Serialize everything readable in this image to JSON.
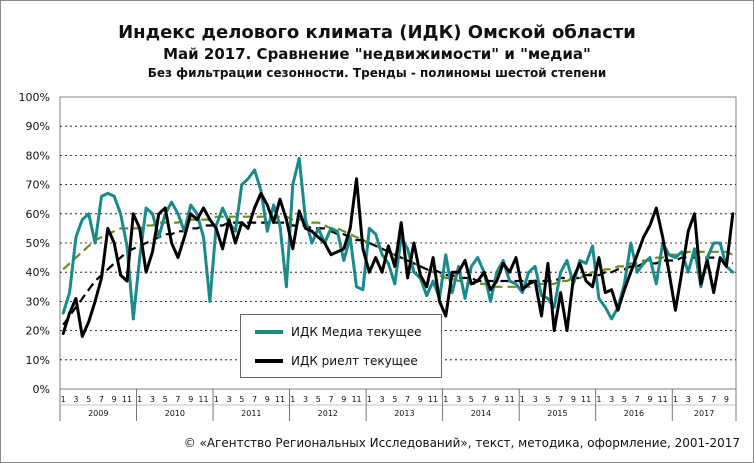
{
  "footer": "© «Агентство Региональных Исследований», текст, методика, оформление, 2001-2017",
  "chart_data": {
    "type": "line",
    "title": "Индекс делового климата (ИДК) Омской области",
    "subtitle": "Май 2017. Сравнение \"недвижимости\"  и \"медиа\"",
    "subtitle2": "Без фильтрации  сезонности. Тренды  - полиномы  шестой степени",
    "ylim": [
      0,
      100
    ],
    "y_ticks": [
      "0%",
      "10%",
      "20%",
      "30%",
      "40%",
      "50%",
      "60%",
      "70%",
      "80%",
      "90%",
      "100%"
    ],
    "x_month_ticks": [
      "1",
      "3",
      "5",
      "7",
      "9",
      "11"
    ],
    "years": [
      "2009",
      "2010",
      "2011",
      "2012",
      "2013",
      "2014",
      "2015",
      "2016",
      "2017"
    ],
    "x_start": "2009-01",
    "legend_position": "center-left",
    "grid": true,
    "series": [
      {
        "name": "ИДК Медиа текущее",
        "color": "#1a8a8a",
        "values": [
          26,
          33,
          52,
          58,
          60,
          50,
          66,
          67,
          66,
          60,
          49,
          24,
          45,
          62,
          60,
          52,
          60,
          64,
          60,
          54,
          63,
          60,
          52,
          30,
          56,
          62,
          57,
          54,
          70,
          72,
          75,
          68,
          54,
          63,
          56,
          35,
          70,
          79,
          58,
          50,
          55,
          50,
          55,
          54,
          44,
          52,
          35,
          34,
          55,
          53,
          46,
          43,
          36,
          52,
          48,
          40,
          38,
          32,
          37,
          31,
          46,
          33,
          42,
          31,
          42,
          45,
          40,
          30,
          40,
          44,
          37,
          36,
          33,
          40,
          42,
          32,
          31,
          28,
          40,
          44,
          36,
          44,
          43,
          49,
          31,
          28,
          24,
          28,
          36,
          50,
          40,
          43,
          45,
          36,
          50,
          46,
          45,
          47,
          40,
          48,
          35,
          45,
          50,
          50,
          42,
          40
        ],
        "trend": [
          41,
          43,
          45,
          47,
          49,
          51,
          52,
          53,
          54,
          55,
          55,
          55,
          55,
          56,
          56,
          57,
          57,
          57,
          57,
          58,
          58,
          58,
          58,
          58,
          59,
          59,
          59,
          59,
          59,
          59,
          59,
          59,
          59,
          59,
          59,
          59,
          58,
          58,
          58,
          57,
          57,
          56,
          55,
          55,
          54,
          53,
          52,
          51,
          50,
          49,
          48,
          47,
          46,
          45,
          44,
          43,
          42,
          41,
          40,
          39,
          38,
          38,
          37,
          37,
          36,
          36,
          36,
          35,
          35,
          35,
          35,
          35,
          35,
          35,
          35,
          36,
          36,
          36,
          37,
          37,
          38,
          38,
          39,
          40,
          40,
          41,
          41,
          42,
          42,
          43,
          43,
          44,
          44,
          45,
          45,
          46,
          46,
          46,
          47,
          47,
          47,
          47,
          47,
          47,
          47,
          46
        ]
      },
      {
        "name": "ИДК риелт текущее",
        "color": "#000000",
        "values": [
          19,
          26,
          31,
          18,
          23,
          30,
          38,
          55,
          50,
          39,
          37,
          60,
          55,
          40,
          47,
          60,
          62,
          50,
          45,
          52,
          60,
          58,
          62,
          58,
          55,
          48,
          58,
          50,
          57,
          55,
          62,
          67,
          63,
          57,
          65,
          58,
          48,
          61,
          55,
          54,
          52,
          50,
          46,
          47,
          48,
          55,
          72,
          48,
          40,
          45,
          40,
          49,
          42,
          57,
          38,
          50,
          39,
          35,
          45,
          30,
          25,
          40,
          40,
          44,
          36,
          37,
          40,
          34,
          37,
          43,
          40,
          45,
          34,
          36,
          37,
          25,
          43,
          20,
          33,
          20,
          38,
          43,
          37,
          35,
          45,
          33,
          34,
          27,
          34,
          40,
          46,
          52,
          56,
          62,
          52,
          40,
          27,
          40,
          54,
          60,
          36,
          44,
          33,
          45,
          42,
          60
        ],
        "trend": [
          22,
          25,
          28,
          31,
          34,
          37,
          39,
          41,
          43,
          45,
          47,
          48,
          49,
          50,
          51,
          52,
          53,
          53,
          54,
          54,
          55,
          55,
          56,
          56,
          56,
          56,
          57,
          57,
          57,
          57,
          57,
          57,
          57,
          57,
          57,
          57,
          56,
          56,
          56,
          55,
          55,
          55,
          54,
          53,
          53,
          52,
          51,
          51,
          50,
          49,
          48,
          47,
          46,
          45,
          44,
          43,
          42,
          41,
          41,
          40,
          39,
          39,
          38,
          38,
          38,
          37,
          37,
          37,
          37,
          37,
          37,
          37,
          37,
          37,
          37,
          37,
          37,
          37,
          38,
          38,
          38,
          38,
          39,
          39,
          39,
          40,
          40,
          41,
          41,
          42,
          42,
          43,
          43,
          43,
          44,
          44,
          44,
          45,
          45,
          45,
          45,
          45,
          45,
          44,
          44,
          43
        ]
      }
    ]
  }
}
